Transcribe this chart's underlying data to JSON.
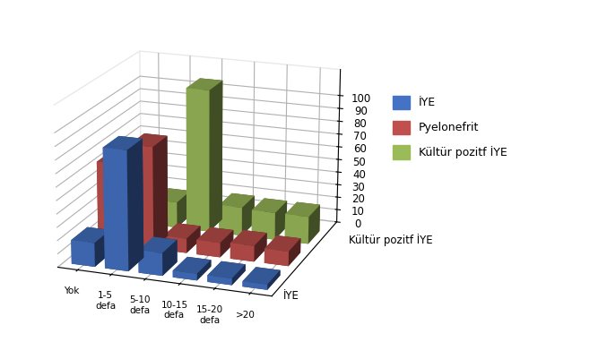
{
  "categories": [
    "Yok",
    "1-5\ndefa",
    "5-10\ndefa",
    "10-15\ndefa",
    "15-20\ndefa",
    ">20"
  ],
  "series": {
    "İYE": [
      18,
      90,
      17,
      5,
      5,
      4
    ],
    "Pyelonefrit": [
      62,
      78,
      11,
      11,
      12,
      11
    ],
    "Kültür pozitf İYE": [
      20,
      20,
      110,
      22,
      21,
      21
    ]
  },
  "colors": {
    "İYE": "#4472C4",
    "Pyelonefrit": "#C0504D",
    "Kültür pozitf İYE": "#9BBB59"
  },
  "zlim": [
    0,
    120
  ],
  "zticks": [
    0,
    10,
    20,
    30,
    40,
    50,
    60,
    70,
    80,
    90,
    100
  ],
  "xlabel_axis": "İYE",
  "ylabel_axis": "Kültür pozitf İYE",
  "background_color": "#ffffff",
  "legend_labels": [
    "İYE",
    "Pyelonefrit",
    "Kültür pozitf İYE"
  ],
  "elev": 18,
  "azim": -70
}
